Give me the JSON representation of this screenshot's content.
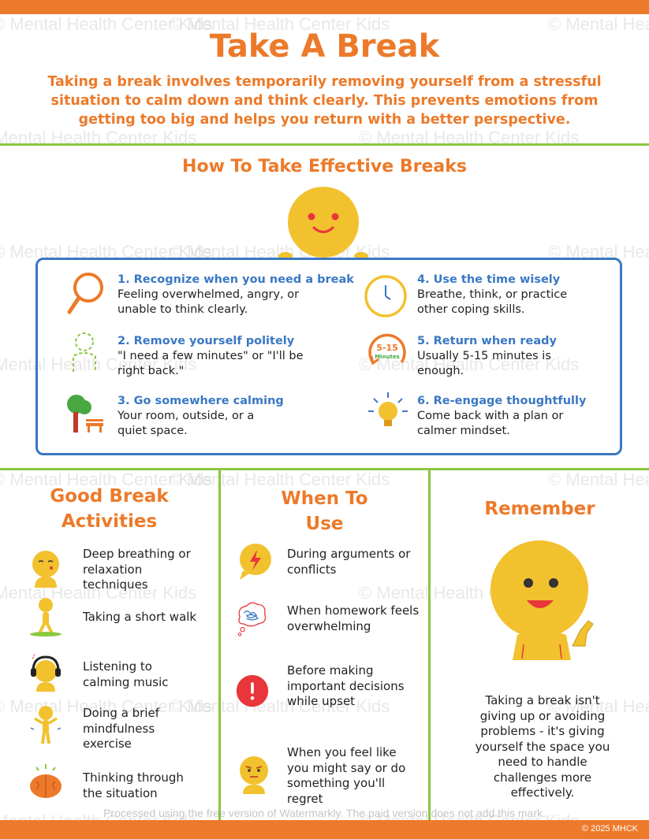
{
  "title": "Take A Break",
  "intro": "Taking a break involves temporarily removing yourself from a stressful situation to calm down and think clearly. This prevents emotions from getting too big and helps you return with a better perspective.",
  "how_to": {
    "title": "How To Take Effective Breaks",
    "steps": [
      {
        "title": "1. Recognize when you need a break",
        "desc": "Feeling overwhelmed, angry, or unable to think clearly.",
        "icon": "magnifying-glass-icon"
      },
      {
        "title": "2. Remove yourself politely",
        "desc": "\"I need a few minutes\" or \"I'll be right back.\"",
        "icon": "dashed-figure-icon"
      },
      {
        "title": "3. Go somewhere calming",
        "desc": "Your room, outside, or a quiet space.",
        "icon": "tree-bench-icon"
      },
      {
        "title": "4. Use the time wisely",
        "desc": "Breathe, think, or practice other coping skills.",
        "icon": "clock-icon"
      },
      {
        "title": "5. Return when ready",
        "desc": "Usually 5-15 minutes is enough.",
        "icon": "timer-icon",
        "icon_text_top": "5-15",
        "icon_text_bottom": "Minutes"
      },
      {
        "title": "6. Re-engage thoughtfully",
        "desc": "Come back with a plan or calmer mindset.",
        "icon": "lightbulb-icon"
      }
    ]
  },
  "good_activities": {
    "title_line1": "Good Break",
    "title_line2": "Activities",
    "items": [
      {
        "text": "Deep breathing or relaxation techniques",
        "icon": "breathing-face-icon"
      },
      {
        "text": "Taking a short walk",
        "icon": "walking-figure-icon"
      },
      {
        "text": "Listening to calming music",
        "icon": "headphones-face-icon"
      },
      {
        "text": "Doing a brief mindfulness exercise",
        "icon": "meditating-figure-icon"
      },
      {
        "text": "Thinking through the situation",
        "icon": "brain-icon"
      }
    ]
  },
  "when_to_use": {
    "title_line1": "When To",
    "title_line2": "Use",
    "items": [
      {
        "text": "During arguments or conflicts",
        "icon": "lightning-speech-icon"
      },
      {
        "text": "When homework feels overwhelming",
        "icon": "scribble-thought-icon"
      },
      {
        "text": "Before making important decisions while upset",
        "icon": "alert-icon"
      },
      {
        "text": "When you feel like you might say or do something you'll regret",
        "icon": "upset-face-icon"
      }
    ]
  },
  "remember": {
    "title": "Remember",
    "text": "Taking a break isn't giving up or avoiding problems - it's giving yourself the space you need to handle challenges more effectively."
  },
  "watermark_text": "© Mental Health Center Kids",
  "watermarkly_note": "Processed using the free version of Watermarkly. The paid version does not add this mark.",
  "copyright": "© 2025 MHCK",
  "colors": {
    "orange": "#ec7a2a",
    "green": "#8cc63f",
    "blue": "#3a78c3",
    "yellow": "#f2c12e"
  }
}
